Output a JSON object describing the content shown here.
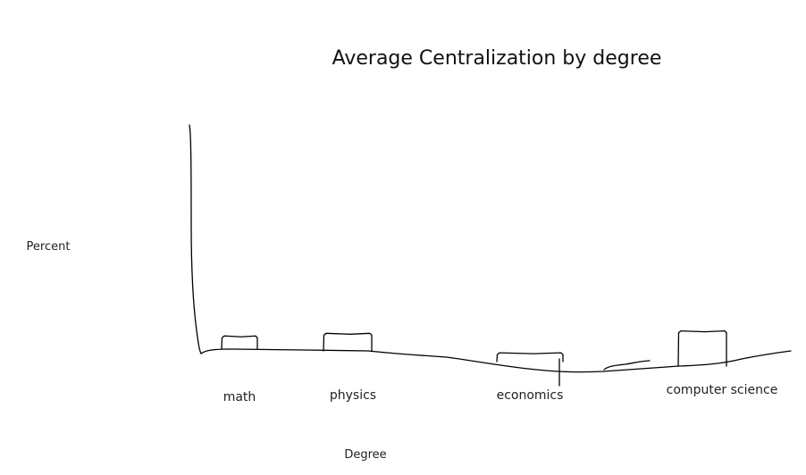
{
  "chart_data": {
    "type": "bar",
    "title": "Average Centralization by degree",
    "xlabel": "Degree",
    "ylabel": "Percent",
    "categories": [
      "math",
      "physics",
      "economics",
      "computer science"
    ],
    "values": [
      15,
      20,
      10,
      40
    ],
    "ylim": [
      0,
      260
    ],
    "grid": false,
    "legend": "none"
  }
}
